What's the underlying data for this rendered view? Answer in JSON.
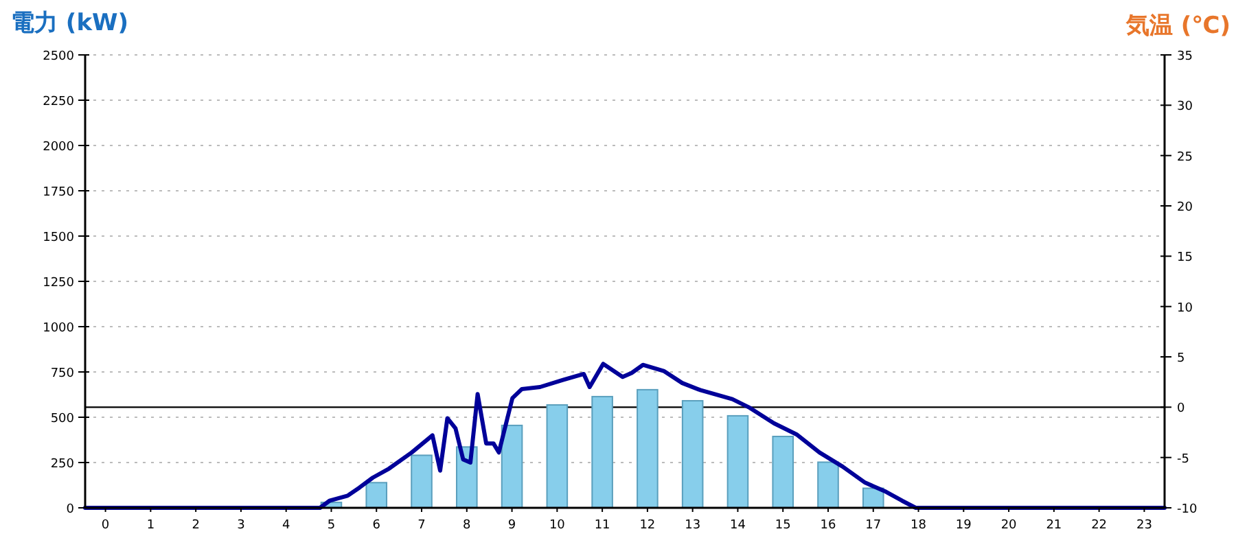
{
  "chart_data": {
    "type": "bar",
    "ylabel": "電力 (kW)",
    "y2label": "気温 (℃)",
    "x": [
      0,
      1,
      2,
      3,
      4,
      5,
      6,
      7,
      8,
      9,
      10,
      11,
      12,
      13,
      14,
      15,
      16,
      17,
      18,
      19,
      20,
      21,
      22,
      23
    ],
    "xlim": [
      -0.45,
      23.45
    ],
    "xticks": [
      0,
      1,
      2,
      3,
      4,
      5,
      6,
      7,
      8,
      9,
      10,
      11,
      12,
      13,
      14,
      15,
      16,
      17,
      18,
      19,
      20,
      21,
      22,
      23
    ],
    "ylim": [
      0,
      2500
    ],
    "yticks": [
      0,
      250,
      500,
      750,
      1000,
      1250,
      1500,
      1750,
      2000,
      2250,
      2500
    ],
    "y2lim": [
      -10,
      35
    ],
    "y2ticks": [
      -10,
      -5,
      0,
      5,
      10,
      15,
      20,
      25,
      30,
      35
    ],
    "grid": "y",
    "series": [
      {
        "color": "#87ceeb",
        "values": [
          0,
          0,
          0,
          0,
          0,
          30,
          139,
          290,
          336,
          455,
          568,
          614,
          652,
          591,
          508,
          394,
          252,
          108,
          0,
          0,
          0,
          0,
          0,
          0
        ]
      },
      {
        "type": "line",
        "axis": "y2",
        "color": "#000099",
        "x": [
          -0.45,
          4.75,
          4.96,
          5.36,
          5.62,
          5.92,
          6.28,
          6.78,
          7.24,
          7.41,
          7.57,
          7.75,
          7.92,
          8.08,
          8.24,
          8.43,
          8.59,
          8.71,
          9.01,
          9.22,
          9.62,
          10.13,
          10.59,
          10.72,
          11.02,
          11.45,
          11.65,
          11.9,
          12.36,
          12.77,
          13.17,
          13.88,
          14.24,
          14.8,
          15.3,
          15.81,
          16.32,
          16.82,
          17.28,
          17.64,
          17.94,
          23.45
        ],
        "values": [
          -10,
          -10,
          -9.3,
          -8.8,
          -8.0,
          -7.0,
          -6.1,
          -4.5,
          -2.8,
          -6.3,
          -1.1,
          -2.1,
          -5.2,
          -5.5,
          1.3,
          -3.6,
          -3.6,
          -4.5,
          0.9,
          1.8,
          2.0,
          2.7,
          3.3,
          2.0,
          4.3,
          3.0,
          3.4,
          4.2,
          3.6,
          2.4,
          1.7,
          0.8,
          0.0,
          -1.6,
          -2.7,
          -4.5,
          -5.9,
          -7.5,
          -8.4,
          -9.3,
          -10,
          -10
        ]
      }
    ],
    "ref_lines": [
      {
        "axis": "y2",
        "value": 0,
        "color": "#000000"
      }
    ]
  }
}
